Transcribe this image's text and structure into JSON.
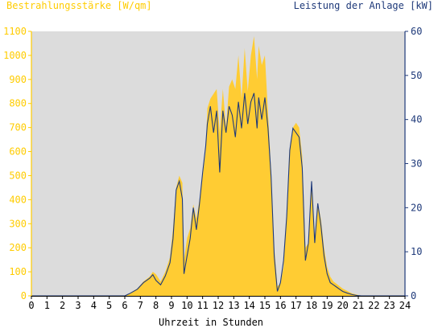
{
  "chart_data": {
    "type": "area",
    "title_left": "Bestrahlungsstärke [W/qm]",
    "title_right": "Leistung der Anlage [kW]",
    "xlabel": "Uhrzeit in Stunden",
    "xlim": [
      0,
      24
    ],
    "x_ticks": [
      "0",
      "1",
      "2",
      "3",
      "4",
      "5",
      "6",
      "7",
      "8",
      "9",
      "10",
      "11",
      "12",
      "13",
      "14",
      "15",
      "16",
      "17",
      "18",
      "19",
      "20",
      "21",
      "22",
      "23",
      "24"
    ],
    "y_left_lim": [
      0,
      1100
    ],
    "y_left_ticks": [
      "0",
      "100",
      "200",
      "300",
      "400",
      "500",
      "600",
      "700",
      "800",
      "900",
      "1000",
      "1100"
    ],
    "y_right_lim": [
      0,
      60
    ],
    "y_right_ticks": [
      "0",
      "10",
      "20",
      "30",
      "40",
      "50",
      "60"
    ],
    "grid": false,
    "colors": {
      "plot_background": "#dcdcdc",
      "irradiance_fill": "#ffcc33",
      "power_line": "#1f3a7a",
      "left_axis_text": "#ffcc00",
      "right_axis_text": "#1f3a7a",
      "x_axis_text": "#000000"
    },
    "series": [
      {
        "axis": "left",
        "style": "filled-area",
        "x": [
          0,
          6.0,
          6.3,
          6.8,
          7.2,
          7.6,
          7.8,
          8.0,
          8.3,
          8.6,
          8.9,
          9.1,
          9.3,
          9.5,
          9.7,
          9.8,
          10.0,
          10.2,
          10.4,
          10.6,
          10.8,
          11.0,
          11.2,
          11.3,
          11.5,
          11.7,
          11.9,
          12.1,
          12.3,
          12.5,
          12.7,
          12.9,
          13.1,
          13.3,
          13.5,
          13.7,
          13.9,
          14.1,
          14.3,
          14.5,
          14.6,
          14.8,
          15.0,
          15.2,
          15.4,
          15.6,
          15.8,
          16.0,
          16.2,
          16.4,
          16.6,
          16.8,
          17.0,
          17.2,
          17.4,
          17.6,
          17.8,
          18.0,
          18.2,
          18.4,
          18.6,
          18.8,
          19.0,
          19.2,
          19.4,
          19.6,
          19.8,
          20.0,
          20.3,
          20.6,
          20.9,
          21.2,
          21.5,
          24
        ],
        "values": [
          0,
          0,
          10,
          30,
          60,
          80,
          100,
          90,
          60,
          100,
          160,
          280,
          450,
          500,
          470,
          150,
          240,
          280,
          380,
          320,
          400,
          500,
          600,
          780,
          820,
          840,
          860,
          680,
          860,
          700,
          870,
          900,
          860,
          1000,
          820,
          1030,
          850,
          1000,
          1080,
          900,
          1040,
          960,
          1000,
          760,
          520,
          200,
          40,
          50,
          120,
          350,
          600,
          700,
          720,
          700,
          580,
          200,
          220,
          480,
          240,
          380,
          320,
          200,
          120,
          80,
          60,
          50,
          40,
          30,
          20,
          10,
          5,
          0,
          0,
          0
        ]
      },
      {
        "axis": "right",
        "style": "line",
        "x": [
          0,
          6.0,
          6.3,
          6.8,
          7.2,
          7.6,
          7.8,
          8.0,
          8.3,
          8.6,
          8.9,
          9.1,
          9.3,
          9.5,
          9.7,
          9.8,
          10.0,
          10.2,
          10.4,
          10.6,
          10.8,
          11.0,
          11.2,
          11.3,
          11.5,
          11.7,
          11.9,
          12.1,
          12.3,
          12.5,
          12.7,
          12.9,
          13.1,
          13.3,
          13.5,
          13.7,
          13.9,
          14.1,
          14.3,
          14.5,
          14.6,
          14.8,
          15.0,
          15.2,
          15.4,
          15.6,
          15.8,
          16.0,
          16.2,
          16.4,
          16.6,
          16.8,
          17.0,
          17.2,
          17.4,
          17.6,
          17.8,
          18.0,
          18.2,
          18.4,
          18.6,
          18.8,
          19.0,
          19.2,
          19.4,
          19.6,
          19.8,
          20.0,
          20.3,
          20.6,
          20.9,
          21.2,
          21.5,
          24
        ],
        "values": [
          0,
          0,
          0.5,
          1.5,
          3,
          4,
          4.8,
          3.5,
          2.5,
          4.5,
          7.5,
          13,
          24,
          26,
          22,
          5,
          9,
          13,
          20,
          15,
          21,
          28,
          34,
          39,
          43,
          37,
          42,
          28,
          42,
          37,
          43,
          41,
          36,
          44,
          38,
          46,
          39,
          44,
          46,
          38,
          45,
          40,
          45,
          38,
          27,
          9,
          1,
          3,
          8,
          18,
          33,
          38,
          37,
          36,
          29,
          8,
          12,
          26,
          12,
          21,
          16,
          9,
          5,
          3,
          2.5,
          2,
          1.5,
          1,
          0.6,
          0.3,
          0.1,
          0,
          0,
          0
        ]
      }
    ]
  }
}
